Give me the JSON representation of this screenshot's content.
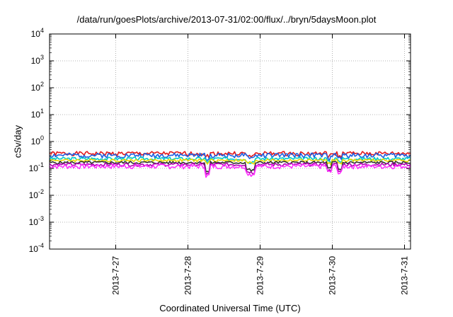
{
  "chart_data": {
    "type": "line",
    "title": "/data/run/goesPlots/archive/2013-07-31/02:00/flux/../bryn/5daysMoon.plot",
    "xlabel": "Coordinated Universal Time (UTC)",
    "ylabel": "cSv/day",
    "y_scale": "log",
    "ylim": [
      0.0001,
      10000
    ],
    "y_ticks": [
      {
        "base": "10",
        "exp": "-4",
        "value": 0.0001
      },
      {
        "base": "10",
        "exp": "-3",
        "value": 0.001
      },
      {
        "base": "10",
        "exp": "-2",
        "value": 0.01
      },
      {
        "base": "10",
        "exp": "-1",
        "value": 0.1
      },
      {
        "base": "10",
        "exp": "0",
        "value": 1
      },
      {
        "base": "10",
        "exp": "1",
        "value": 10
      },
      {
        "base": "10",
        "exp": "2",
        "value": 100
      },
      {
        "base": "10",
        "exp": "3",
        "value": 1000
      },
      {
        "base": "10",
        "exp": "4",
        "value": 10000
      }
    ],
    "xlim": [
      "2013-07-26T02:00",
      "2013-07-31T02:00"
    ],
    "x_ticks": [
      "2013-7-27",
      "2013-7-28",
      "2013-7-29",
      "2013-7-30",
      "2013-7-31"
    ],
    "grid": true,
    "legend": "none",
    "series": [
      {
        "color": "#e41a1c",
        "level": 0.36,
        "amp": 0.18,
        "seed": 1
      },
      {
        "color": "#1e5fe0",
        "level": 0.31,
        "amp": 0.2,
        "seed": 2
      },
      {
        "color": "#00c8c8",
        "level": 0.23,
        "amp": 0.14,
        "seed": 3
      },
      {
        "color": "#e8d800",
        "level": 0.2,
        "amp": 0.12,
        "seed": 4
      },
      {
        "color": "#303030",
        "level": 0.165,
        "amp": 0.12,
        "seed": 5
      },
      {
        "color": "#b000b0",
        "level": 0.14,
        "amp": 0.14,
        "seed": 6
      },
      {
        "color": "#ff30ff",
        "level": 0.12,
        "amp": 0.2,
        "seed": 7
      }
    ],
    "dips": [
      {
        "x": "2013-07-28T06:30",
        "depth": 0.45
      },
      {
        "x": "2013-07-28T20:00",
        "depth": 0.55
      },
      {
        "x": "2013-07-28T21:30",
        "depth": 0.5
      },
      {
        "x": "2013-07-29T23:00",
        "depth": 0.6
      },
      {
        "x": "2013-07-30T02:30",
        "depth": 0.55
      }
    ]
  }
}
